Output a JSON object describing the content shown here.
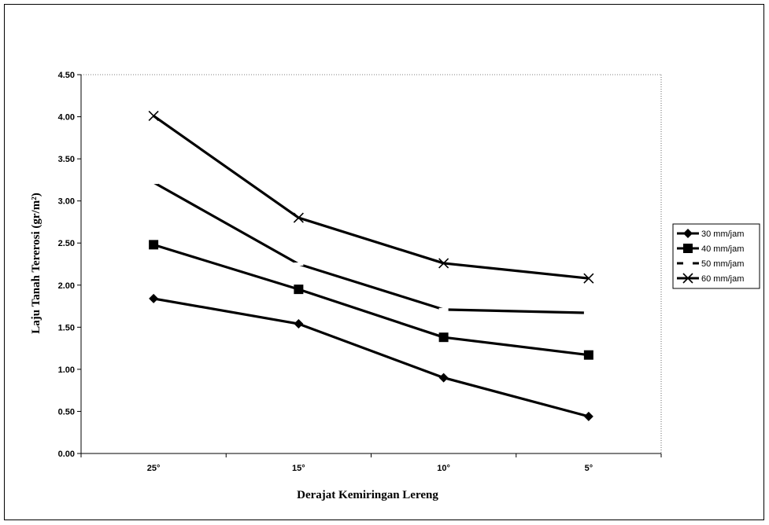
{
  "chart_data": {
    "type": "line",
    "categories": [
      "25°",
      "15°",
      "10°",
      "5°"
    ],
    "series": [
      {
        "name": "30 mm/jam",
        "marker": "diamond",
        "values": [
          1.84,
          1.54,
          0.9,
          0.44
        ]
      },
      {
        "name": "40 mm/jam",
        "marker": "square",
        "values": [
          2.48,
          1.95,
          1.38,
          1.17
        ]
      },
      {
        "name": "50 mm/jam",
        "marker": "dash",
        "values": [
          3.22,
          2.25,
          1.71,
          1.67
        ]
      },
      {
        "name": "60 mm/jam",
        "marker": "x",
        "values": [
          4.01,
          2.8,
          2.26,
          2.08
        ]
      }
    ],
    "xlabel": "Derajat Kemiringan Lereng",
    "ylabel": "Laju Tanah Tererosi (gr/m²)",
    "ylim": [
      0,
      4.5
    ],
    "yticks": [
      "0.00",
      "0.50",
      "1.00",
      "1.50",
      "2.00",
      "2.50",
      "3.00",
      "3.50",
      "4.00",
      "4.50"
    ],
    "legend_position": "right",
    "grid": false
  }
}
